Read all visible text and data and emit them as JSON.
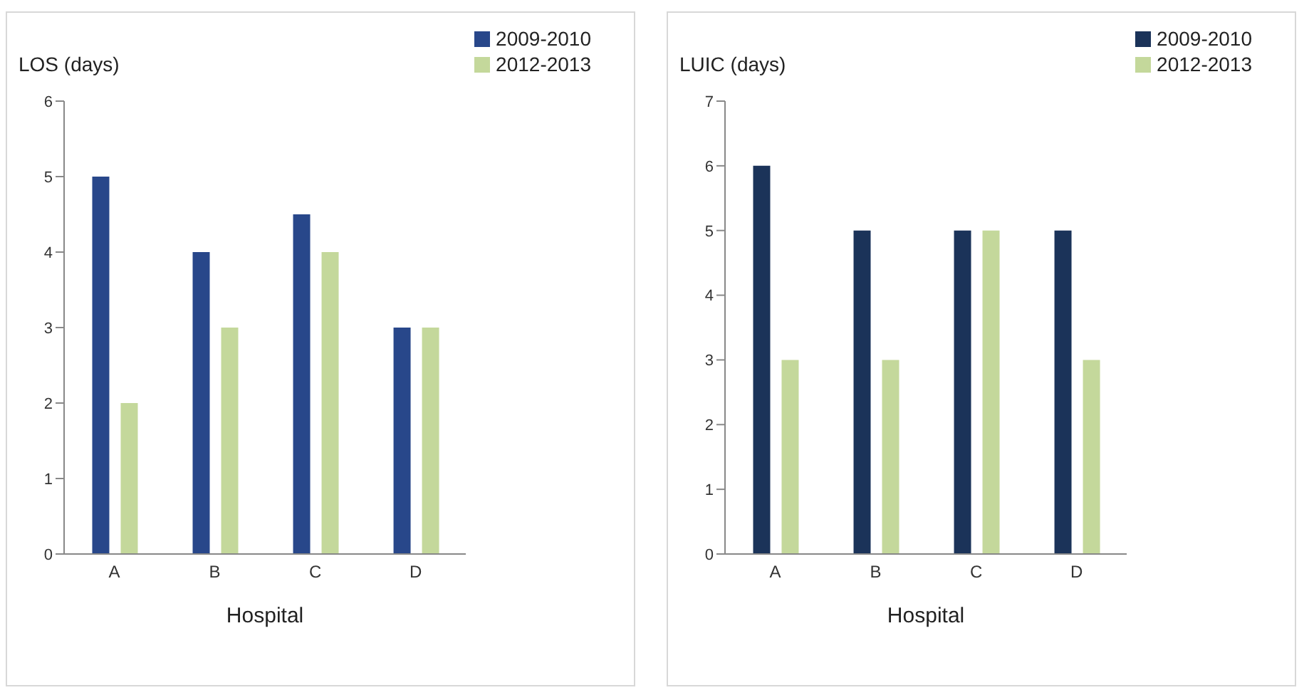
{
  "chart_data": [
    {
      "type": "bar",
      "ylabel": "LOS (days)",
      "xlabel": "Hospital",
      "categories": [
        "A",
        "B",
        "C",
        "D"
      ],
      "series": [
        {
          "name": "2009-2010",
          "color": "#28478a",
          "values": [
            5,
            4,
            4.5,
            3
          ]
        },
        {
          "name": "2012-2013",
          "color": "#c4d89b",
          "values": [
            2,
            3,
            4,
            3
          ]
        }
      ],
      "ylim": [
        0,
        6
      ],
      "yticks": [
        0,
        1,
        2,
        3,
        4,
        5,
        6
      ],
      "grid": false,
      "legend": "top right"
    },
    {
      "type": "bar",
      "ylabel": "LUIC (days)",
      "xlabel": "Hospital",
      "categories": [
        "A",
        "B",
        "C",
        "D"
      ],
      "series": [
        {
          "name": "2009-2010",
          "color": "#1b3359",
          "values": [
            6,
            5,
            5,
            5
          ]
        },
        {
          "name": "2012-2013",
          "color": "#c4d89b",
          "values": [
            3,
            3,
            5,
            3
          ]
        }
      ],
      "ylim": [
        0,
        7
      ],
      "yticks": [
        0,
        1,
        2,
        3,
        4,
        5,
        6,
        7
      ],
      "grid": false,
      "legend": "top right"
    }
  ]
}
